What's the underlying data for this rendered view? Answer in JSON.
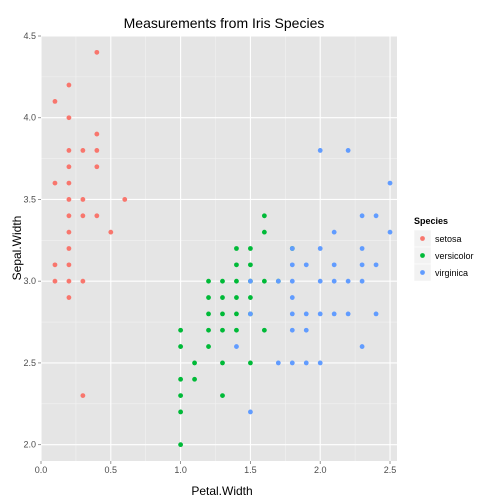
{
  "chart_data": {
    "type": "scatter",
    "title": "Measurements from Iris Species",
    "xlabel": "Petal.Width",
    "ylabel": "Sepal.Width",
    "xlim": [
      0,
      2.55
    ],
    "ylim": [
      1.9,
      4.5
    ],
    "x_ticks": [
      "0.0",
      "0.5",
      "1.0",
      "1.5",
      "2.0",
      "2.5"
    ],
    "x_tick_values": [
      0,
      0.5,
      1.0,
      1.5,
      2.0,
      2.5
    ],
    "y_ticks": [
      "2.0",
      "2.5",
      "3.0",
      "3.5",
      "4.0",
      "4.5"
    ],
    "y_tick_values": [
      2.0,
      2.5,
      3.0,
      3.5,
      4.0,
      4.5
    ],
    "grid": true,
    "legend": {
      "title": "Species",
      "position": "right"
    },
    "series": [
      {
        "name": "setosa",
        "color": "#F8766D",
        "points": [
          [
            0.1,
            4.1
          ],
          [
            0.1,
            3.6
          ],
          [
            0.1,
            3.1
          ],
          [
            0.1,
            3.0
          ],
          [
            0.2,
            4.2
          ],
          [
            0.2,
            4.0
          ],
          [
            0.2,
            3.8
          ],
          [
            0.2,
            3.7
          ],
          [
            0.2,
            3.6
          ],
          [
            0.2,
            3.5
          ],
          [
            0.2,
            3.4
          ],
          [
            0.2,
            3.3
          ],
          [
            0.2,
            3.2
          ],
          [
            0.2,
            3.1
          ],
          [
            0.2,
            3.0
          ],
          [
            0.2,
            2.9
          ],
          [
            0.3,
            3.8
          ],
          [
            0.3,
            3.5
          ],
          [
            0.3,
            3.4
          ],
          [
            0.3,
            3.0
          ],
          [
            0.3,
            2.3
          ],
          [
            0.4,
            4.4
          ],
          [
            0.4,
            3.9
          ],
          [
            0.4,
            3.8
          ],
          [
            0.4,
            3.7
          ],
          [
            0.4,
            3.4
          ],
          [
            0.5,
            3.3
          ],
          [
            0.6,
            3.5
          ]
        ]
      },
      {
        "name": "versicolor",
        "color": "#00BA38",
        "points": [
          [
            1.0,
            2.7
          ],
          [
            1.0,
            2.6
          ],
          [
            1.0,
            2.4
          ],
          [
            1.0,
            2.3
          ],
          [
            1.0,
            2.2
          ],
          [
            1.0,
            2.0
          ],
          [
            1.1,
            2.5
          ],
          [
            1.1,
            2.4
          ],
          [
            1.2,
            3.0
          ],
          [
            1.2,
            2.9
          ],
          [
            1.2,
            2.8
          ],
          [
            1.2,
            2.7
          ],
          [
            1.2,
            2.6
          ],
          [
            1.3,
            3.0
          ],
          [
            1.3,
            2.9
          ],
          [
            1.3,
            2.8
          ],
          [
            1.3,
            2.7
          ],
          [
            1.3,
            2.5
          ],
          [
            1.3,
            2.3
          ],
          [
            1.4,
            3.2
          ],
          [
            1.4,
            3.1
          ],
          [
            1.4,
            3.0
          ],
          [
            1.4,
            2.9
          ],
          [
            1.4,
            2.8
          ],
          [
            1.4,
            2.7
          ],
          [
            1.5,
            3.2
          ],
          [
            1.5,
            3.1
          ],
          [
            1.5,
            3.0
          ],
          [
            1.5,
            2.9
          ],
          [
            1.5,
            2.8
          ],
          [
            1.5,
            2.5
          ],
          [
            1.6,
            3.4
          ],
          [
            1.6,
            3.3
          ],
          [
            1.6,
            3.0
          ],
          [
            1.6,
            2.7
          ],
          [
            1.8,
            3.2
          ],
          [
            1.7,
            3.0
          ]
        ]
      },
      {
        "name": "virginica",
        "color": "#619CFF",
        "points": [
          [
            1.4,
            2.6
          ],
          [
            1.5,
            2.8
          ],
          [
            1.5,
            3.0
          ],
          [
            1.5,
            2.2
          ],
          [
            1.7,
            2.5
          ],
          [
            1.7,
            3.0
          ],
          [
            1.8,
            3.2
          ],
          [
            1.8,
            3.1
          ],
          [
            1.8,
            3.0
          ],
          [
            1.8,
            2.9
          ],
          [
            1.8,
            2.8
          ],
          [
            1.8,
            2.7
          ],
          [
            1.8,
            2.5
          ],
          [
            1.9,
            3.1
          ],
          [
            1.9,
            2.8
          ],
          [
            1.9,
            2.7
          ],
          [
            1.9,
            2.5
          ],
          [
            2.0,
            3.8
          ],
          [
            2.0,
            3.2
          ],
          [
            2.0,
            3.0
          ],
          [
            2.0,
            2.8
          ],
          [
            2.0,
            2.5
          ],
          [
            2.1,
            3.3
          ],
          [
            2.1,
            3.1
          ],
          [
            2.1,
            3.0
          ],
          [
            2.1,
            2.8
          ],
          [
            2.2,
            3.8
          ],
          [
            2.2,
            3.0
          ],
          [
            2.2,
            2.8
          ],
          [
            2.3,
            3.4
          ],
          [
            2.3,
            3.2
          ],
          [
            2.3,
            3.1
          ],
          [
            2.3,
            3.0
          ],
          [
            2.3,
            2.6
          ],
          [
            2.4,
            3.4
          ],
          [
            2.4,
            3.1
          ],
          [
            2.4,
            2.8
          ],
          [
            2.5,
            3.6
          ],
          [
            2.5,
            3.3
          ]
        ]
      }
    ]
  }
}
